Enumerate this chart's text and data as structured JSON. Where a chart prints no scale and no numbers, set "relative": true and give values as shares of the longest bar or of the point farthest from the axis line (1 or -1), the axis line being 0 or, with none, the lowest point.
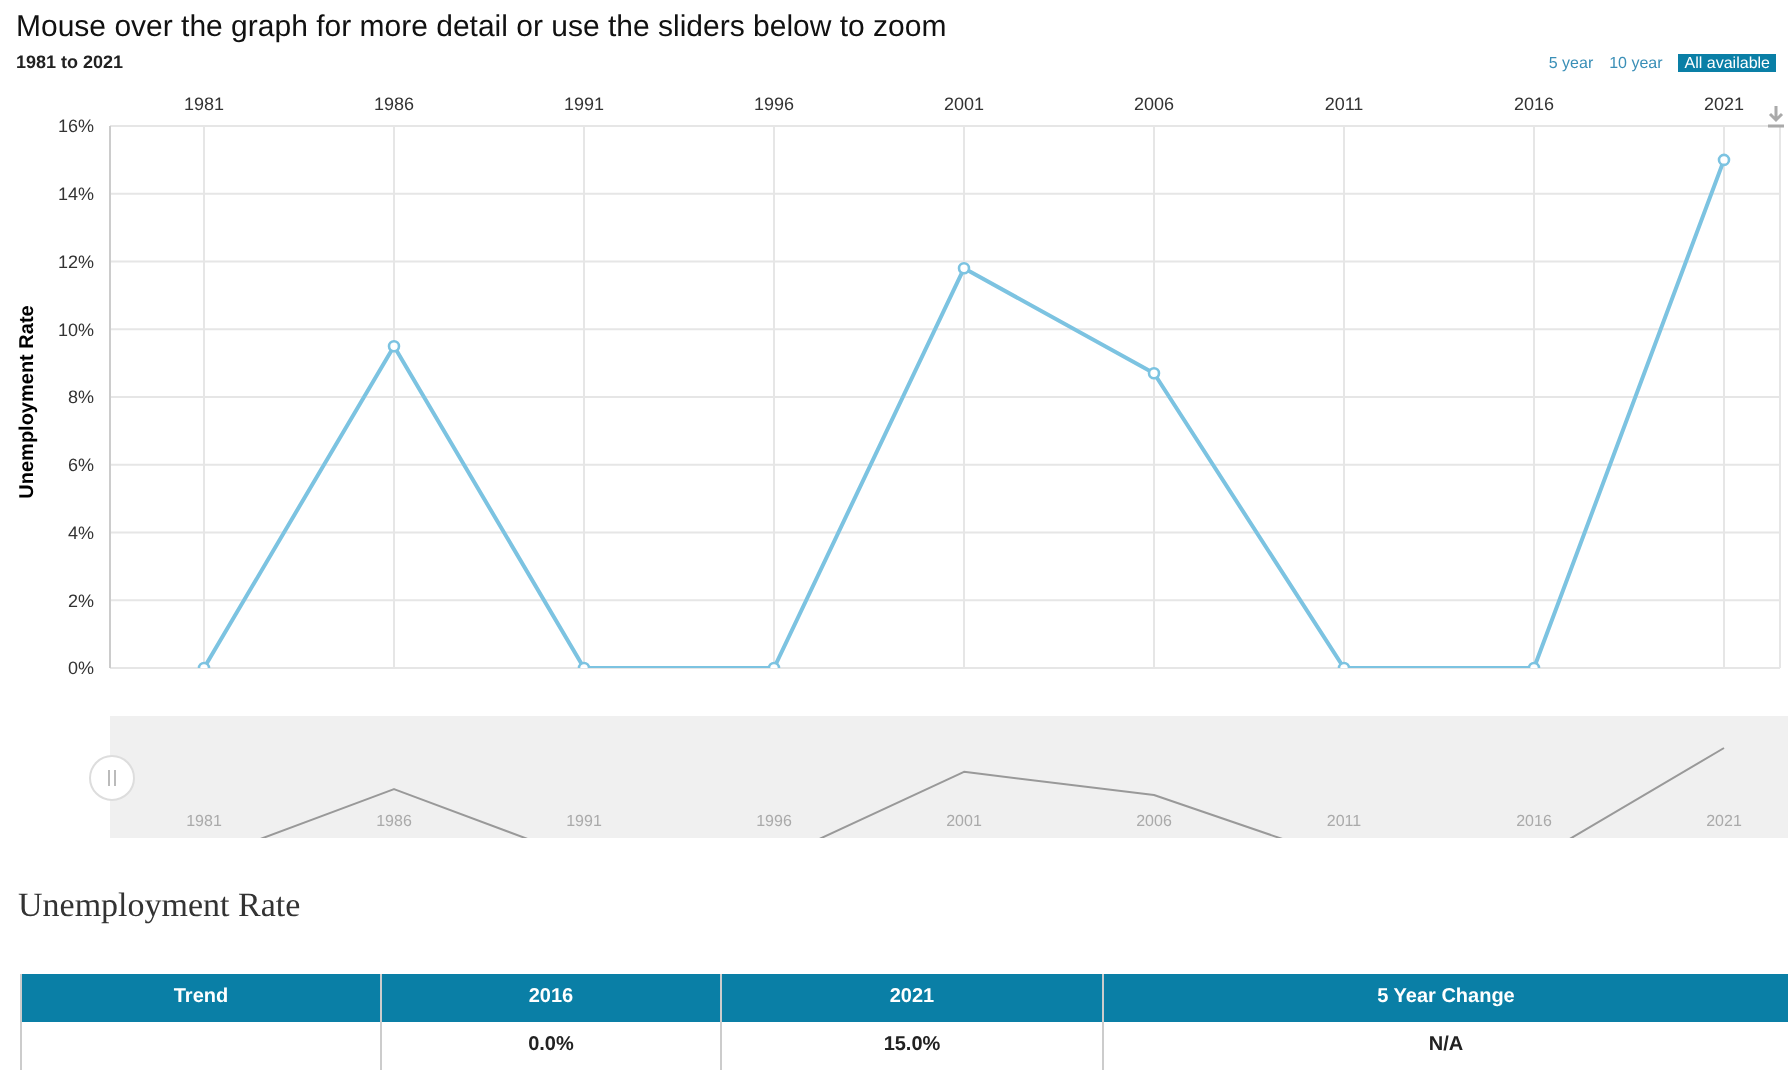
{
  "chart_data": [
    {
      "type": "line",
      "title": "Mouse over the graph for more detail or use the sliders below to zoom",
      "subtitle": "1981 to 2021",
      "ylabel": "Unemployment Rate",
      "categories": [
        "1981",
        "1986",
        "1991",
        "1996",
        "2001",
        "2006",
        "2011",
        "2016",
        "2021"
      ],
      "series": [
        {
          "color": "#7cc3e1",
          "values": [
            0,
            9.5,
            0,
            0,
            11.8,
            8.7,
            0,
            0,
            15.0
          ]
        }
      ],
      "ylim": [
        0,
        16
      ],
      "yticks": [
        {
          "value": 0,
          "label": "0%"
        },
        {
          "value": 2,
          "label": "2%"
        },
        {
          "value": 4,
          "label": "4%"
        },
        {
          "value": 6,
          "label": "6%"
        },
        {
          "value": 8,
          "label": "8%"
        },
        {
          "value": 10,
          "label": "10%"
        },
        {
          "value": 12,
          "label": "12%"
        },
        {
          "value": 14,
          "label": "14%"
        },
        {
          "value": 16,
          "label": "16%"
        }
      ],
      "grid": true,
      "marker": "circle",
      "line_style": "solid",
      "legend": false,
      "annotations": [
        "5 year",
        "10 year",
        "All available",
        "Unemployment Rate",
        "Trend",
        "2016",
        "2021",
        "5 Year Change",
        "0.0%",
        "15.0%",
        "N/A"
      ]
    },
    {
      "type": "line",
      "relative": true,
      "categories": [
        "1981",
        "1986",
        "1991",
        "1996",
        "2001",
        "2006",
        "2011",
        "2016",
        "2021"
      ],
      "series": [
        {
          "color": "#999999",
          "values": [
            0,
            0.633,
            0,
            0,
            0.787,
            0.58,
            0,
            0,
            1
          ]
        }
      ],
      "grid": false,
      "marker": "none",
      "legend": false
    }
  ]
}
